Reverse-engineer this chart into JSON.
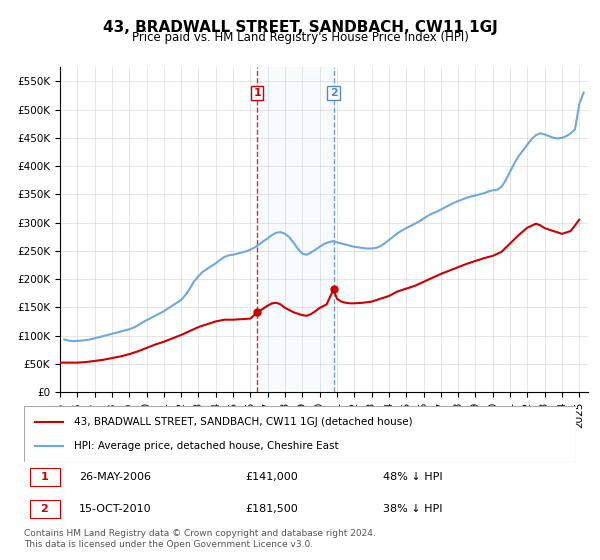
{
  "title": "43, BRADWALL STREET, SANDBACH, CW11 1GJ",
  "subtitle": "Price paid vs. HM Land Registry's House Price Index (HPI)",
  "ylabel_ticks": [
    "£0",
    "£50K",
    "£100K",
    "£150K",
    "£200K",
    "£250K",
    "£300K",
    "£350K",
    "£400K",
    "£450K",
    "£500K",
    "£550K"
  ],
  "ylim": [
    0,
    575000
  ],
  "xlim_start": 1995.0,
  "xlim_end": 2025.5,
  "hpi_color": "#6fa8dc",
  "price_color": "#cc0000",
  "vline1_x": 2006.4,
  "vline2_x": 2010.8,
  "marker1_label": "1",
  "marker2_label": "2",
  "legend_line1": "43, BRADWALL STREET, SANDBACH, CW11 1GJ (detached house)",
  "legend_line2": "HPI: Average price, detached house, Cheshire East",
  "transaction1_num": "1",
  "transaction1_date": "26-MAY-2006",
  "transaction1_price": "£141,000",
  "transaction1_hpi": "48% ↓ HPI",
  "transaction2_num": "2",
  "transaction2_date": "15-OCT-2010",
  "transaction2_price": "£181,500",
  "transaction2_hpi": "38% ↓ HPI",
  "footer": "Contains HM Land Registry data © Crown copyright and database right 2024.\nThis data is licensed under the Open Government Licence v3.0.",
  "hpi_data": [
    [
      1995.25,
      93000
    ],
    [
      1995.5,
      91000
    ],
    [
      1995.75,
      90000
    ],
    [
      1996.0,
      90500
    ],
    [
      1996.25,
      91000
    ],
    [
      1996.5,
      92000
    ],
    [
      1996.75,
      93000
    ],
    [
      1997.0,
      95000
    ],
    [
      1997.25,
      97000
    ],
    [
      1997.5,
      99000
    ],
    [
      1997.75,
      101000
    ],
    [
      1998.0,
      103000
    ],
    [
      1998.25,
      105000
    ],
    [
      1998.5,
      107000
    ],
    [
      1998.75,
      109000
    ],
    [
      1999.0,
      111000
    ],
    [
      1999.25,
      114000
    ],
    [
      1999.5,
      118000
    ],
    [
      1999.75,
      123000
    ],
    [
      2000.0,
      127000
    ],
    [
      2000.25,
      131000
    ],
    [
      2000.5,
      135000
    ],
    [
      2000.75,
      139000
    ],
    [
      2001.0,
      143000
    ],
    [
      2001.25,
      148000
    ],
    [
      2001.5,
      153000
    ],
    [
      2001.75,
      158000
    ],
    [
      2002.0,
      163000
    ],
    [
      2002.25,
      172000
    ],
    [
      2002.5,
      183000
    ],
    [
      2002.75,
      196000
    ],
    [
      2003.0,
      205000
    ],
    [
      2003.25,
      213000
    ],
    [
      2003.5,
      218000
    ],
    [
      2003.75,
      223000
    ],
    [
      2004.0,
      228000
    ],
    [
      2004.25,
      234000
    ],
    [
      2004.5,
      239000
    ],
    [
      2004.75,
      242000
    ],
    [
      2005.0,
      243000
    ],
    [
      2005.25,
      245000
    ],
    [
      2005.5,
      247000
    ],
    [
      2005.75,
      249000
    ],
    [
      2006.0,
      252000
    ],
    [
      2006.25,
      256000
    ],
    [
      2006.5,
      261000
    ],
    [
      2006.75,
      267000
    ],
    [
      2007.0,
      272000
    ],
    [
      2007.25,
      278000
    ],
    [
      2007.5,
      282000
    ],
    [
      2007.75,
      283000
    ],
    [
      2008.0,
      280000
    ],
    [
      2008.25,
      274000
    ],
    [
      2008.5,
      264000
    ],
    [
      2008.75,
      253000
    ],
    [
      2009.0,
      245000
    ],
    [
      2009.25,
      243000
    ],
    [
      2009.5,
      247000
    ],
    [
      2009.75,
      252000
    ],
    [
      2010.0,
      257000
    ],
    [
      2010.25,
      262000
    ],
    [
      2010.5,
      265000
    ],
    [
      2010.75,
      267000
    ],
    [
      2011.0,
      265000
    ],
    [
      2011.25,
      263000
    ],
    [
      2011.5,
      261000
    ],
    [
      2011.75,
      259000
    ],
    [
      2012.0,
      257000
    ],
    [
      2012.25,
      256000
    ],
    [
      2012.5,
      255000
    ],
    [
      2012.75,
      254000
    ],
    [
      2013.0,
      254000
    ],
    [
      2013.25,
      255000
    ],
    [
      2013.5,
      258000
    ],
    [
      2013.75,
      263000
    ],
    [
      2014.0,
      269000
    ],
    [
      2014.25,
      275000
    ],
    [
      2014.5,
      281000
    ],
    [
      2014.75,
      286000
    ],
    [
      2015.0,
      290000
    ],
    [
      2015.25,
      294000
    ],
    [
      2015.5,
      298000
    ],
    [
      2015.75,
      302000
    ],
    [
      2016.0,
      307000
    ],
    [
      2016.25,
      312000
    ],
    [
      2016.5,
      316000
    ],
    [
      2016.75,
      319000
    ],
    [
      2017.0,
      323000
    ],
    [
      2017.25,
      327000
    ],
    [
      2017.5,
      331000
    ],
    [
      2017.75,
      335000
    ],
    [
      2018.0,
      338000
    ],
    [
      2018.25,
      341000
    ],
    [
      2018.5,
      344000
    ],
    [
      2018.75,
      346000
    ],
    [
      2019.0,
      348000
    ],
    [
      2019.25,
      350000
    ],
    [
      2019.5,
      352000
    ],
    [
      2019.75,
      355000
    ],
    [
      2020.0,
      357000
    ],
    [
      2020.25,
      358000
    ],
    [
      2020.5,
      363000
    ],
    [
      2020.75,
      375000
    ],
    [
      2021.0,
      390000
    ],
    [
      2021.25,
      405000
    ],
    [
      2021.5,
      418000
    ],
    [
      2021.75,
      428000
    ],
    [
      2022.0,
      438000
    ],
    [
      2022.25,
      448000
    ],
    [
      2022.5,
      455000
    ],
    [
      2022.75,
      458000
    ],
    [
      2023.0,
      456000
    ],
    [
      2023.25,
      453000
    ],
    [
      2023.5,
      450000
    ],
    [
      2023.75,
      449000
    ],
    [
      2024.0,
      450000
    ],
    [
      2024.25,
      453000
    ],
    [
      2024.5,
      458000
    ],
    [
      2024.75,
      465000
    ],
    [
      2025.0,
      510000
    ],
    [
      2025.25,
      530000
    ]
  ],
  "price_data": [
    [
      1995.0,
      52000
    ],
    [
      1995.5,
      52000
    ],
    [
      1996.0,
      52000
    ],
    [
      1996.5,
      53000
    ],
    [
      1997.0,
      55000
    ],
    [
      1997.5,
      57000
    ],
    [
      1998.0,
      60000
    ],
    [
      1998.5,
      63000
    ],
    [
      1999.0,
      67000
    ],
    [
      1999.5,
      72000
    ],
    [
      2000.0,
      78000
    ],
    [
      2000.5,
      84000
    ],
    [
      2001.0,
      89000
    ],
    [
      2001.5,
      95000
    ],
    [
      2002.0,
      101000
    ],
    [
      2002.5,
      108000
    ],
    [
      2003.0,
      115000
    ],
    [
      2003.5,
      120000
    ],
    [
      2004.0,
      125000
    ],
    [
      2004.5,
      128000
    ],
    [
      2005.0,
      128000
    ],
    [
      2005.5,
      129000
    ],
    [
      2006.0,
      130000
    ],
    [
      2006.4,
      141000
    ],
    [
      2006.75,
      148000
    ],
    [
      2007.0,
      153000
    ],
    [
      2007.25,
      157000
    ],
    [
      2007.5,
      158000
    ],
    [
      2007.75,
      155000
    ],
    [
      2008.0,
      149000
    ],
    [
      2008.5,
      141000
    ],
    [
      2009.0,
      136000
    ],
    [
      2009.25,
      135000
    ],
    [
      2009.5,
      138000
    ],
    [
      2009.75,
      143000
    ],
    [
      2010.0,
      149000
    ],
    [
      2010.4,
      155000
    ],
    [
      2010.8,
      181500
    ],
    [
      2011.0,
      165000
    ],
    [
      2011.25,
      160000
    ],
    [
      2011.5,
      158000
    ],
    [
      2011.75,
      157000
    ],
    [
      2012.0,
      157000
    ],
    [
      2012.5,
      158000
    ],
    [
      2013.0,
      160000
    ],
    [
      2013.5,
      165000
    ],
    [
      2014.0,
      170000
    ],
    [
      2014.5,
      178000
    ],
    [
      2015.0,
      183000
    ],
    [
      2015.5,
      188000
    ],
    [
      2016.0,
      195000
    ],
    [
      2016.5,
      202000
    ],
    [
      2017.0,
      209000
    ],
    [
      2017.5,
      215000
    ],
    [
      2018.0,
      221000
    ],
    [
      2018.5,
      227000
    ],
    [
      2019.0,
      232000
    ],
    [
      2019.5,
      237000
    ],
    [
      2020.0,
      241000
    ],
    [
      2020.5,
      248000
    ],
    [
      2021.0,
      263000
    ],
    [
      2021.5,
      278000
    ],
    [
      2022.0,
      291000
    ],
    [
      2022.5,
      298000
    ],
    [
      2022.75,
      295000
    ],
    [
      2023.0,
      290000
    ],
    [
      2023.5,
      285000
    ],
    [
      2024.0,
      280000
    ],
    [
      2024.5,
      285000
    ],
    [
      2024.75,
      295000
    ],
    [
      2025.0,
      305000
    ]
  ]
}
